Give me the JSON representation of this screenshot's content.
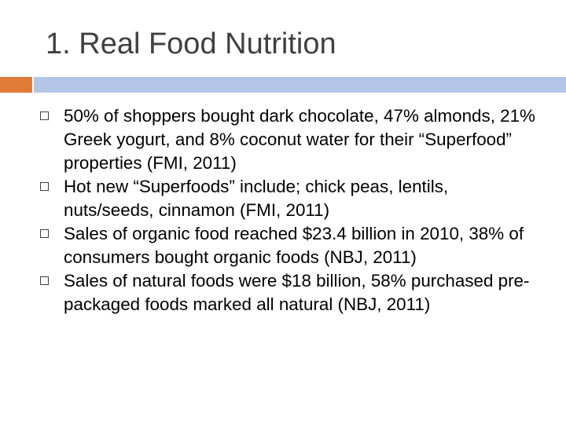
{
  "slide": {
    "title": "1. Real Food Nutrition",
    "colors": {
      "accent": "#e07b39",
      "rule": "#b4c6e7",
      "title": "#404040",
      "text": "#000000",
      "background": "#ffffff"
    },
    "bullet_icon": "hollow-square-icon",
    "bullets": [
      "50% of shoppers bought dark chocolate, 47% almonds, 21% Greek yogurt, and 8% coconut water for their “Superfood” properties (FMI, 2011)",
      "Hot new “Superfoods” include; chick peas, lentils, nuts/seeds, cinnamon (FMI, 2011)",
      "Sales of organic food reached $23.4 billion in 2010, 38% of consumers bought organic foods (NBJ, 2011)",
      "Sales of natural foods were $18 billion, 58% purchased pre-packaged foods marked all natural (NBJ, 2011)"
    ]
  }
}
